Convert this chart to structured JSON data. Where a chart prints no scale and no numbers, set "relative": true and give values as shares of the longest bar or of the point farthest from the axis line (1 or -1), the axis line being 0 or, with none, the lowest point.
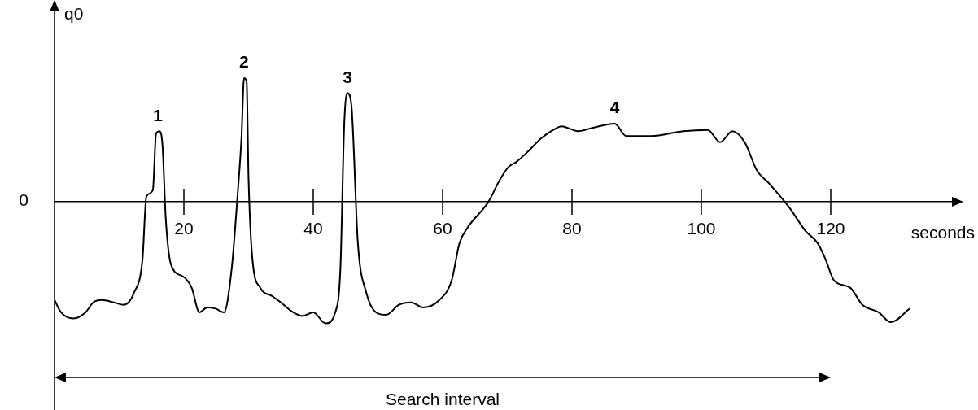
{
  "chart_data": {
    "type": "line",
    "relative": true,
    "xlabel": "seconds",
    "ylabel": "q0",
    "xlim": [
      0,
      140
    ],
    "xticks": [
      20,
      40,
      60,
      80,
      100,
      120
    ],
    "grid": false,
    "legend": false,
    "marker": "none",
    "line_style": "solid",
    "color": "#000000",
    "x": [
      0,
      1,
      2.9,
      4.8,
      6,
      7.3,
      9.2,
      10.7,
      12.3,
      13.6,
      14.2,
      15.2,
      15.7,
      16.2,
      16.7,
      17.2,
      18,
      19.9,
      21.2,
      22.4,
      23.6,
      24.9,
      26.2,
      27.4,
      28.3,
      28.9,
      29.3,
      29.7,
      30,
      30.6,
      31.8,
      33.7,
      35,
      36.9,
      38.4,
      40,
      41.9,
      43.4,
      44.2,
      44.8,
      45.3,
      45.9,
      46.9,
      48.2,
      49.7,
      51.3,
      53.2,
      55.1,
      57,
      59.5,
      61.4,
      62.6,
      63.9,
      67,
      68.9,
      70.2,
      71.4,
      73.3,
      75.2,
      77.1,
      78.4,
      80.9,
      83.4,
      86.6,
      88.4,
      92.2,
      97.2,
      101,
      102.9,
      104.8,
      106.7,
      108.6,
      110.4,
      113.6,
      116.1,
      118,
      119.2,
      120.5,
      123,
      124.9,
      127.4,
      129.3,
      132.2
    ],
    "values": [
      -0.8,
      -0.9,
      -0.95,
      -0.9,
      -0.82,
      -0.8,
      -0.82,
      -0.84,
      -0.74,
      -0.47,
      0.04,
      0.09,
      0.55,
      0.57,
      0.45,
      -0.14,
      -0.51,
      -0.61,
      -0.7,
      -0.9,
      -0.86,
      -0.87,
      -0.9,
      -0.54,
      0.05,
      0.51,
      1,
      0.97,
      0.18,
      -0.47,
      -0.7,
      -0.77,
      -0.82,
      -0.9,
      -0.93,
      -0.9,
      -0.99,
      -0.9,
      -0.54,
      0.64,
      0.88,
      0.78,
      -0.34,
      -0.74,
      -0.9,
      -0.92,
      -0.84,
      -0.82,
      -0.86,
      -0.8,
      -0.64,
      -0.34,
      -0.21,
      -0.01,
      0.18,
      0.28,
      0.32,
      0.41,
      0.51,
      0.58,
      0.61,
      0.57,
      0.6,
      0.63,
      0.53,
      0.53,
      0.57,
      0.58,
      0.48,
      0.57,
      0.48,
      0.25,
      0.15,
      -0.05,
      -0.24,
      -0.34,
      -0.47,
      -0.64,
      -0.7,
      -0.84,
      -0.9,
      -0.98,
      -0.87
    ],
    "annotations": [
      "0",
      "Search interval",
      {
        "text": "1",
        "x": 16,
        "y": 0.57
      },
      {
        "text": "2",
        "x": 29.3,
        "y": 1
      },
      {
        "text": "3",
        "x": 45.3,
        "y": 0.88
      },
      {
        "text": "4",
        "x": 86.6,
        "y": 0.63
      }
    ]
  }
}
